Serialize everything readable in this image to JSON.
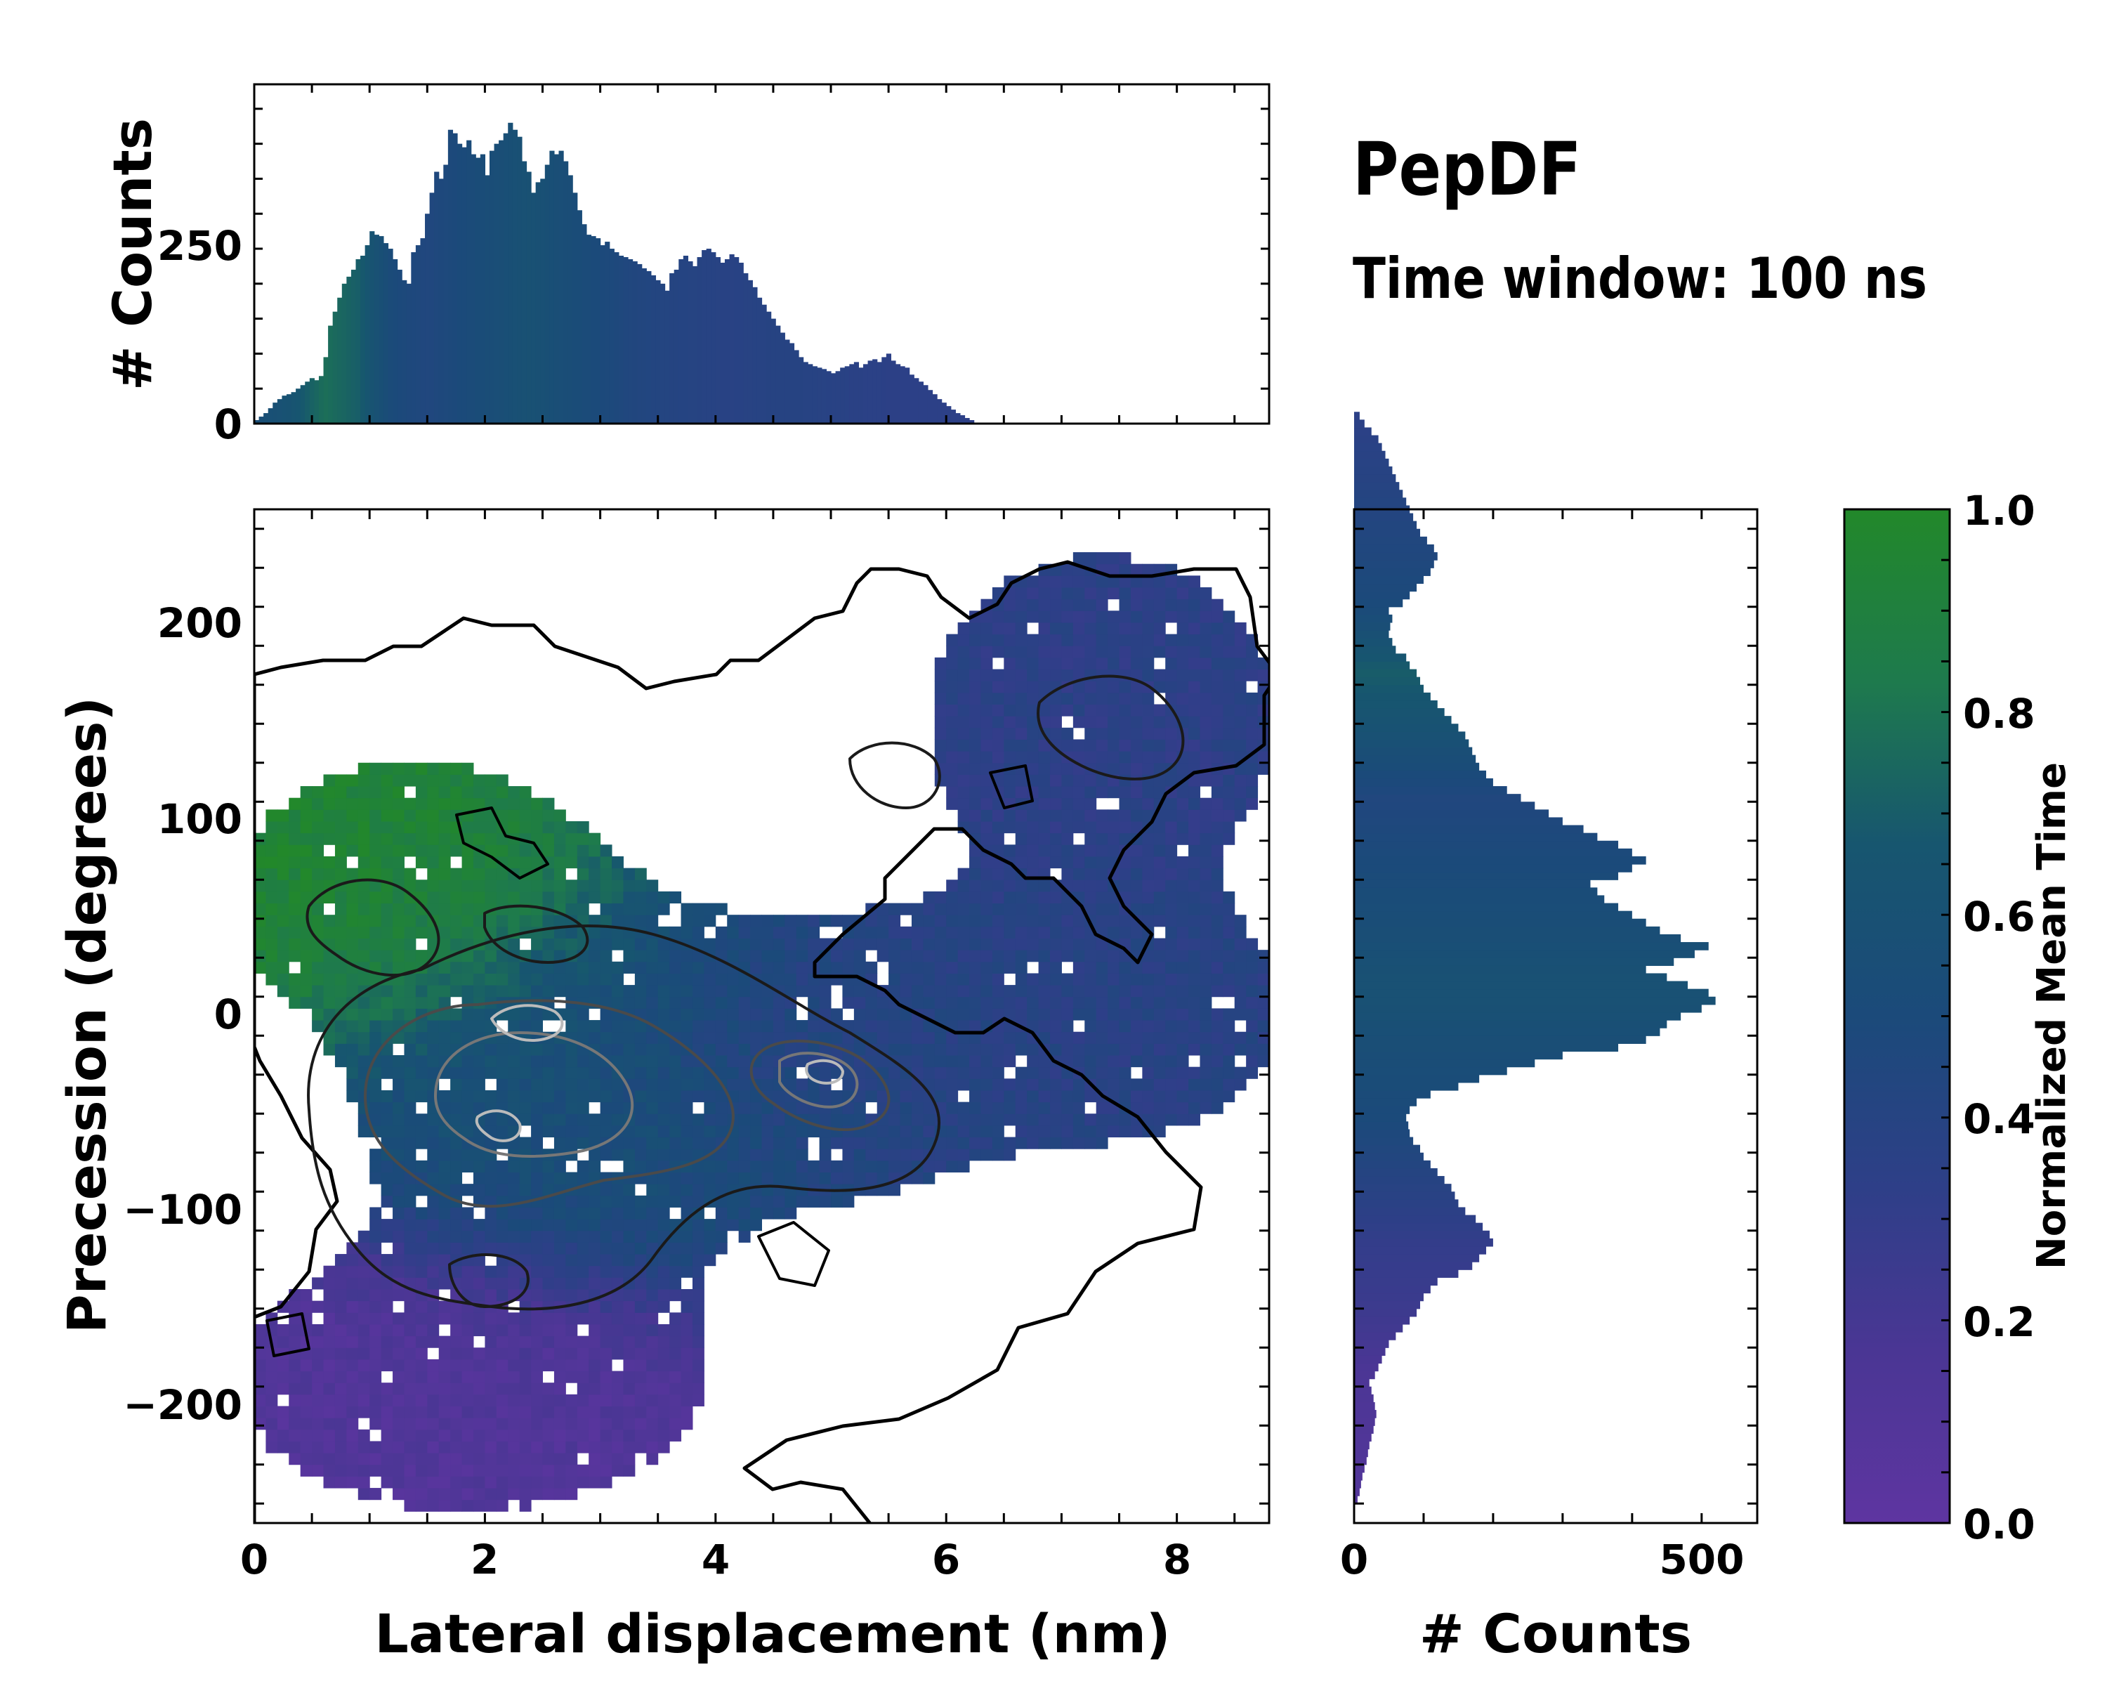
{
  "annotation": {
    "title": "PepDF",
    "subtitle": "Time window: 100 ns"
  },
  "colormap": {
    "stops": [
      "#5e35a1",
      "#4a3694",
      "#2e3f88",
      "#1b4a7a",
      "#17566f",
      "#1e7a4d",
      "#22882a"
    ]
  },
  "colorbar": {
    "label": "Normalized Mean Time",
    "range": [
      0.0,
      1.0
    ],
    "ticks": [
      "0.0",
      "0.2",
      "0.4",
      "0.6",
      "0.8",
      "1.0"
    ]
  },
  "chart_data": [
    {
      "name": "top-histogram",
      "type": "bar",
      "ylabel": "# Counts",
      "xlim": [
        0,
        8.8
      ],
      "ylim": [
        0,
        485
      ],
      "yticks": [
        "0",
        "250"
      ],
      "bin_start": 0.0,
      "bin_width": 0.04,
      "color_values": [
        0.55,
        0.62,
        0.78,
        0.7,
        0.5,
        0.45,
        0.5,
        0.55,
        0.6,
        0.55,
        0.5,
        0.45,
        0.42,
        0.4,
        0.38,
        0.4,
        0.4,
        0.38,
        0.36,
        0.35,
        0.35,
        0.34
      ],
      "counts": [
        5,
        10,
        15,
        22,
        30,
        35,
        40,
        42,
        45,
        50,
        55,
        60,
        65,
        62,
        68,
        95,
        140,
        160,
        180,
        200,
        210,
        220,
        235,
        240,
        255,
        275,
        270,
        268,
        258,
        250,
        235,
        220,
        205,
        200,
        245,
        255,
        265,
        300,
        330,
        360,
        350,
        370,
        420,
        415,
        400,
        395,
        405,
        385,
        380,
        385,
        355,
        390,
        400,
        405,
        415,
        430,
        420,
        410,
        375,
        360,
        330,
        345,
        350,
        370,
        390,
        385,
        390,
        375,
        355,
        330,
        305,
        285,
        270,
        268,
        265,
        255,
        260,
        250,
        245,
        240,
        238,
        235,
        232,
        228,
        222,
        218,
        212,
        205,
        200,
        190,
        215,
        220,
        235,
        240,
        232,
        225,
        238,
        248,
        250,
        245,
        238,
        230,
        235,
        242,
        238,
        230,
        215,
        205,
        195,
        180,
        170,
        160,
        150,
        140,
        130,
        120,
        115,
        105,
        95,
        88,
        85,
        82,
        80,
        78,
        75,
        72,
        75,
        80,
        82,
        85,
        88,
        80,
        85,
        90,
        92,
        88,
        95,
        100,
        90,
        85,
        82,
        80,
        70,
        65,
        60,
        55,
        48,
        42,
        35,
        30,
        25,
        20,
        15,
        12,
        8,
        5
      ]
    },
    {
      "name": "main-2d-histogram",
      "type": "heatmap",
      "xlabel": "Lateral displacement (nm)",
      "ylabel": "Precession (degrees)",
      "xlim": [
        0,
        8.8
      ],
      "ylim": [
        -260,
        260
      ],
      "xticks": [
        "0",
        "2",
        "4",
        "6",
        "8"
      ],
      "yticks": [
        "−200",
        "−100",
        "0",
        "100",
        "200"
      ],
      "clusters": [
        {
          "region": "upper-left",
          "center": [
            1.3,
            60
          ],
          "spread": [
            0.9,
            40
          ],
          "mean_time": 0.95
        },
        {
          "region": "center",
          "center": [
            2.7,
            -40
          ],
          "spread": [
            1.1,
            60
          ],
          "mean_time": 0.55
        },
        {
          "region": "center-right",
          "center": [
            5.0,
            -25
          ],
          "spread": [
            0.9,
            40
          ],
          "mean_time": 0.4
        },
        {
          "region": "lower-left",
          "center": [
            1.8,
            -190
          ],
          "spread": [
            1.2,
            40
          ],
          "mean_time": 0.1
        },
        {
          "region": "upper-right",
          "center": [
            7.3,
            150
          ],
          "spread": [
            0.9,
            50
          ],
          "mean_time": 0.35
        },
        {
          "region": "right-middle",
          "center": [
            7.2,
            0
          ],
          "spread": [
            1.0,
            40
          ],
          "mean_time": 0.38
        }
      ]
    },
    {
      "name": "right-histogram",
      "type": "bar",
      "xlabel": "# Counts",
      "xlim": [
        0,
        580
      ],
      "ylim": [
        -260,
        260
      ],
      "xticks": [
        "0",
        "500"
      ],
      "bin_start": -250,
      "bin_width": 4,
      "color_values": [
        0.1,
        0.12,
        0.15,
        0.25,
        0.3,
        0.4,
        0.5,
        0.55,
        0.6,
        0.55,
        0.5,
        0.45,
        0.6,
        0.7,
        0.5,
        0.45,
        0.4,
        0.35
      ],
      "counts": [
        5,
        8,
        10,
        12,
        15,
        18,
        20,
        22,
        25,
        28,
        30,
        32,
        30,
        28,
        25,
        22,
        30,
        35,
        40,
        45,
        50,
        60,
        70,
        80,
        90,
        95,
        100,
        110,
        120,
        150,
        170,
        180,
        190,
        200,
        195,
        185,
        175,
        160,
        150,
        145,
        140,
        130,
        120,
        110,
        100,
        95,
        85,
        80,
        78,
        75,
        80,
        90,
        110,
        150,
        180,
        220,
        260,
        300,
        380,
        420,
        440,
        450,
        470,
        500,
        520,
        510,
        480,
        450,
        420,
        460,
        490,
        510,
        470,
        440,
        420,
        400,
        380,
        360,
        350,
        340,
        380,
        400,
        420,
        400,
        380,
        350,
        330,
        300,
        280,
        260,
        240,
        220,
        200,
        190,
        180,
        175,
        170,
        165,
        160,
        150,
        140,
        130,
        120,
        110,
        100,
        95,
        90,
        80,
        75,
        60,
        55,
        50,
        52,
        55,
        50,
        70,
        80,
        90,
        100,
        110,
        115,
        120,
        115,
        105,
        95,
        90,
        85,
        80,
        75,
        70,
        65,
        60,
        55,
        50,
        45,
        40,
        35,
        25,
        15,
        8
      ]
    }
  ]
}
